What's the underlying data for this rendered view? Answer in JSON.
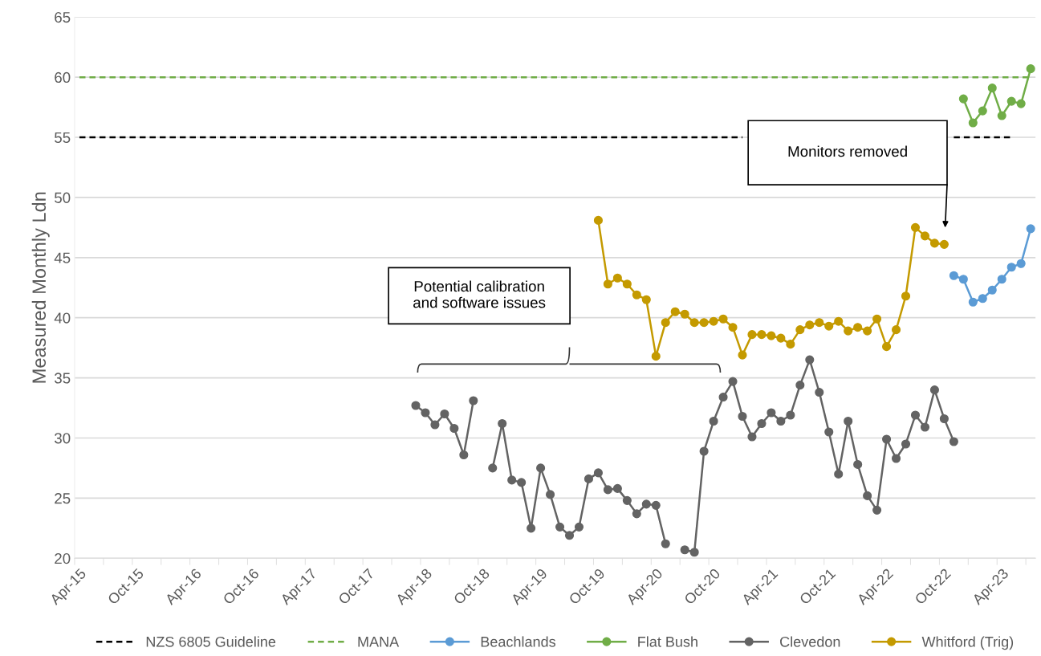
{
  "chart_data": {
    "type": "line",
    "ylabel": "Measured Monthly Ldn",
    "categories": [
      "Apr-15",
      null,
      null,
      null,
      null,
      null,
      "Oct-15",
      null,
      null,
      null,
      null,
      null,
      "Apr-16",
      null,
      null,
      null,
      null,
      null,
      "Oct-16",
      null,
      null,
      null,
      null,
      null,
      "Apr-17",
      null,
      null,
      null,
      null,
      null,
      "Oct-17",
      null,
      null,
      null,
      null,
      null,
      "Apr-18",
      null,
      null,
      null,
      null,
      null,
      "Oct-18",
      null,
      null,
      null,
      null,
      null,
      "Apr-19",
      null,
      null,
      null,
      null,
      null,
      "Oct-19",
      null,
      null,
      null,
      null,
      null,
      "Apr-20",
      null,
      null,
      null,
      null,
      null,
      "Oct-20",
      null,
      null,
      null,
      null,
      null,
      "Apr-21",
      null,
      null,
      null,
      null,
      null,
      "Oct-21",
      null,
      null,
      null,
      null,
      null,
      "Apr-22",
      null,
      null,
      null,
      null,
      null,
      "Oct-22",
      null,
      null,
      null,
      null,
      null,
      "Apr-23",
      null,
      null,
      null
    ],
    "series": [
      {
        "name": "NZS 6805 Guideline",
        "color": "#000000",
        "line_style": "dashed",
        "marker": "none",
        "values": [
          55,
          55,
          55,
          55,
          55,
          55,
          55,
          55,
          55,
          55,
          55,
          55,
          55,
          55,
          55,
          55,
          55,
          55,
          55,
          55,
          55,
          55,
          55,
          55,
          55,
          55,
          55,
          55,
          55,
          55,
          55,
          55,
          55,
          55,
          55,
          55,
          55,
          55,
          55,
          55,
          55,
          55,
          55,
          55,
          55,
          55,
          55,
          55,
          55,
          55,
          55,
          55,
          55,
          55,
          55,
          55,
          55,
          55,
          55,
          55,
          55,
          55,
          55,
          55,
          55,
          55,
          55,
          55,
          55,
          55,
          null,
          null,
          null,
          null,
          null,
          null,
          null,
          null,
          null,
          null,
          null,
          null,
          null,
          null,
          null,
          null,
          null,
          null,
          null,
          null,
          null,
          55,
          55,
          55,
          55,
          55,
          55,
          55,
          null,
          null
        ]
      },
      {
        "name": "MANA",
        "color": "#70ad47",
        "line_style": "dashed",
        "marker": "none",
        "values": [
          60,
          60,
          60,
          60,
          60,
          60,
          60,
          60,
          60,
          60,
          60,
          60,
          60,
          60,
          60,
          60,
          60,
          60,
          60,
          60,
          60,
          60,
          60,
          60,
          60,
          60,
          60,
          60,
          60,
          60,
          60,
          60,
          60,
          60,
          60,
          60,
          60,
          60,
          60,
          60,
          60,
          60,
          60,
          60,
          60,
          60,
          60,
          60,
          60,
          60,
          60,
          60,
          60,
          60,
          60,
          60,
          60,
          60,
          60,
          60,
          60,
          60,
          60,
          60,
          60,
          60,
          60,
          60,
          60,
          60,
          60,
          60,
          60,
          60,
          60,
          60,
          60,
          60,
          60,
          60,
          60,
          60,
          60,
          60,
          60,
          60,
          60,
          60,
          60,
          60,
          60,
          60,
          60,
          60,
          60,
          60,
          60,
          60,
          60,
          60
        ]
      },
      {
        "name": "Beachlands",
        "color": "#5b9bd5",
        "values": [
          null,
          null,
          null,
          null,
          null,
          null,
          null,
          null,
          null,
          null,
          null,
          null,
          null,
          null,
          null,
          null,
          null,
          null,
          null,
          null,
          null,
          null,
          null,
          null,
          null,
          null,
          null,
          null,
          null,
          null,
          null,
          null,
          null,
          null,
          null,
          null,
          null,
          null,
          null,
          null,
          null,
          null,
          null,
          null,
          null,
          null,
          null,
          null,
          null,
          null,
          null,
          null,
          null,
          null,
          null,
          null,
          null,
          null,
          null,
          null,
          null,
          null,
          null,
          null,
          null,
          null,
          null,
          null,
          null,
          null,
          null,
          null,
          null,
          null,
          null,
          null,
          null,
          null,
          null,
          null,
          null,
          null,
          null,
          null,
          null,
          null,
          null,
          null,
          null,
          null,
          null,
          43.5,
          43.2,
          41.3,
          41.6,
          42.3,
          43.2,
          44.2,
          44.5,
          47.4
        ]
      },
      {
        "name": "Flat Bush",
        "color": "#70ad47",
        "values": [
          null,
          null,
          null,
          null,
          null,
          null,
          null,
          null,
          null,
          null,
          null,
          null,
          null,
          null,
          null,
          null,
          null,
          null,
          null,
          null,
          null,
          null,
          null,
          null,
          null,
          null,
          null,
          null,
          null,
          null,
          null,
          null,
          null,
          null,
          null,
          null,
          null,
          null,
          null,
          null,
          null,
          null,
          null,
          null,
          null,
          null,
          null,
          null,
          null,
          null,
          null,
          null,
          null,
          null,
          null,
          null,
          null,
          null,
          null,
          null,
          null,
          null,
          null,
          null,
          null,
          null,
          null,
          null,
          null,
          null,
          null,
          null,
          null,
          null,
          null,
          null,
          null,
          null,
          null,
          null,
          null,
          null,
          null,
          null,
          null,
          null,
          null,
          null,
          null,
          null,
          null,
          null,
          58.2,
          56.2,
          57.2,
          59.1,
          56.8,
          58.0,
          57.8,
          60.7
        ]
      },
      {
        "name": "Clevedon",
        "color": "#636363",
        "values": [
          null,
          null,
          null,
          null,
          null,
          null,
          null,
          null,
          null,
          null,
          null,
          null,
          null,
          null,
          null,
          null,
          null,
          null,
          null,
          null,
          null,
          null,
          null,
          null,
          null,
          null,
          null,
          null,
          null,
          null,
          null,
          null,
          null,
          null,
          null,
          32.7,
          32.1,
          31.1,
          32.0,
          30.8,
          28.6,
          33.1,
          null,
          27.5,
          31.2,
          26.5,
          26.3,
          22.5,
          27.5,
          25.3,
          22.6,
          21.9,
          22.6,
          26.6,
          27.1,
          25.7,
          25.8,
          24.8,
          23.7,
          24.5,
          24.4,
          21.2,
          null,
          20.7,
          20.5,
          28.9,
          31.4,
          33.4,
          34.7,
          31.8,
          30.1,
          31.2,
          32.1,
          31.4,
          31.9,
          34.4,
          36.5,
          33.8,
          30.5,
          27.0,
          31.4,
          27.8,
          25.2,
          24.0,
          29.9,
          28.3,
          29.5,
          31.9,
          30.9,
          34.0,
          31.6,
          29.7,
          null,
          null,
          null,
          null,
          null,
          null,
          null,
          null
        ]
      },
      {
        "name": "Whitford (Trig)",
        "color": "#c49a00",
        "values": [
          null,
          null,
          null,
          null,
          null,
          null,
          null,
          null,
          null,
          null,
          null,
          null,
          null,
          null,
          null,
          null,
          null,
          null,
          null,
          null,
          null,
          null,
          null,
          null,
          null,
          null,
          null,
          null,
          null,
          null,
          null,
          null,
          null,
          null,
          null,
          null,
          null,
          null,
          null,
          null,
          null,
          null,
          null,
          null,
          null,
          null,
          null,
          null,
          null,
          null,
          null,
          null,
          null,
          null,
          48.1,
          42.8,
          43.3,
          42.8,
          41.9,
          41.5,
          36.8,
          39.6,
          40.5,
          40.3,
          39.6,
          39.6,
          39.7,
          39.9,
          39.2,
          36.9,
          38.6,
          38.6,
          38.5,
          38.3,
          37.8,
          39.0,
          39.4,
          39.6,
          39.3,
          39.7,
          38.9,
          39.2,
          38.9,
          39.9,
          37.6,
          39.0,
          41.8,
          47.5,
          46.8,
          46.2,
          46.1,
          null,
          null,
          null,
          null,
          null,
          null,
          null,
          null,
          null
        ]
      }
    ],
    "ylim": [
      20,
      65
    ],
    "yticks": [
      20,
      25,
      30,
      35,
      40,
      45,
      50,
      55,
      60,
      65
    ],
    "grid": "y",
    "legend": "bottom",
    "marker": "circle",
    "line_style": "solid",
    "annotations": [
      "Monitors removed",
      "Potential calibration\nand software issues"
    ]
  }
}
